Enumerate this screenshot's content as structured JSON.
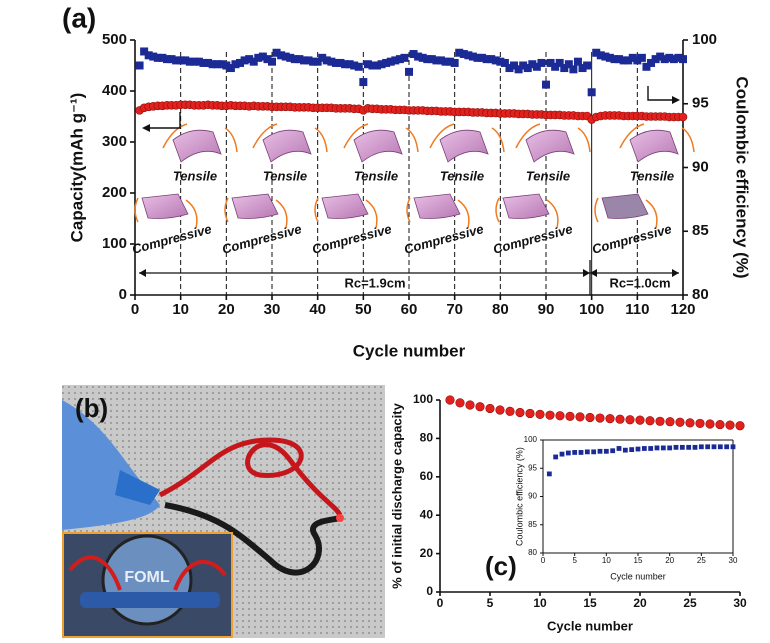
{
  "chart_data": [
    {
      "type": "scatter",
      "panel_label": "(a)",
      "xlabel": "Cycle number",
      "ylabel": "Capacity(mAh g⁻¹)",
      "y2label": "Coulombic efficiency (%)",
      "xlim": [
        0,
        120
      ],
      "xticks": [
        0,
        10,
        20,
        30,
        40,
        50,
        60,
        70,
        80,
        90,
        100,
        110,
        120
      ],
      "ylim": [
        0,
        500
      ],
      "yticks": [
        0,
        100,
        200,
        300,
        400,
        500
      ],
      "y2lim": [
        80,
        100
      ],
      "y2ticks": [
        80,
        85,
        90,
        95,
        100
      ],
      "annotations": {
        "tensile": "Tensile",
        "compressive": "Compressive",
        "rc1": "Rc=1.9cm",
        "rc2": "Rc=1.0cm"
      },
      "x": [
        1,
        2,
        3,
        4,
        5,
        6,
        7,
        8,
        9,
        10,
        11,
        12,
        13,
        14,
        15,
        16,
        17,
        18,
        19,
        20,
        21,
        22,
        23,
        24,
        25,
        26,
        27,
        28,
        29,
        30,
        31,
        32,
        33,
        34,
        35,
        36,
        37,
        38,
        39,
        40,
        41,
        42,
        43,
        44,
        45,
        46,
        47,
        48,
        49,
        50,
        51,
        52,
        53,
        54,
        55,
        56,
        57,
        58,
        59,
        60,
        61,
        62,
        63,
        64,
        65,
        66,
        67,
        68,
        69,
        70,
        71,
        72,
        73,
        74,
        75,
        76,
        77,
        78,
        79,
        80,
        81,
        82,
        83,
        84,
        85,
        86,
        87,
        88,
        89,
        90,
        91,
        92,
        93,
        94,
        95,
        96,
        97,
        98,
        99,
        100,
        101,
        102,
        103,
        104,
        105,
        106,
        107,
        108,
        109,
        110,
        111,
        112,
        113,
        114,
        115,
        116,
        117,
        118,
        119,
        120
      ],
      "series": [
        {
          "name": "Capacity",
          "color": "#e3201c",
          "marker": "circle",
          "values": [
            362,
            367,
            369,
            370,
            371,
            371,
            372,
            372,
            372,
            373,
            373,
            373,
            372,
            372,
            372,
            373,
            372,
            372,
            371,
            371,
            372,
            371,
            371,
            371,
            370,
            371,
            370,
            370,
            370,
            369,
            369,
            369,
            369,
            369,
            368,
            368,
            368,
            368,
            367,
            367,
            367,
            367,
            367,
            366,
            366,
            366,
            366,
            365,
            365,
            362,
            366,
            365,
            365,
            364,
            364,
            364,
            363,
            363,
            363,
            362,
            362,
            362,
            362,
            361,
            361,
            361,
            360,
            360,
            360,
            359,
            359,
            359,
            359,
            358,
            358,
            358,
            357,
            357,
            357,
            356,
            356,
            356,
            356,
            355,
            355,
            355,
            354,
            354,
            354,
            353,
            353,
            353,
            353,
            352,
            352,
            352,
            351,
            351,
            351,
            344,
            349,
            351,
            352,
            352,
            352,
            352,
            351,
            351,
            351,
            351,
            351,
            350,
            350,
            350,
            350,
            350,
            349,
            349,
            349,
            349
          ]
        },
        {
          "name": "Coulombic efficiency",
          "color": "#1c2a96",
          "marker": "square",
          "axis": "y2",
          "values": [
            98.0,
            99.1,
            98.8,
            98.7,
            98.6,
            98.6,
            98.5,
            98.5,
            98.4,
            98.4,
            98.4,
            98.3,
            98.3,
            98.3,
            98.2,
            98.2,
            98.1,
            98.1,
            98.1,
            98.0,
            97.8,
            98.1,
            98.2,
            98.4,
            98.5,
            98.3,
            98.6,
            98.7,
            98.5,
            98.3,
            99.0,
            98.8,
            98.7,
            98.6,
            98.5,
            98.5,
            98.4,
            98.4,
            98.3,
            98.3,
            98.6,
            98.4,
            98.3,
            98.2,
            98.2,
            98.1,
            98.1,
            98.0,
            97.9,
            96.7,
            98.1,
            98.0,
            98.0,
            98.1,
            98.2,
            98.3,
            98.4,
            98.5,
            98.6,
            97.5,
            98.9,
            98.7,
            98.6,
            98.5,
            98.5,
            98.4,
            98.4,
            98.3,
            98.3,
            98.2,
            99.0,
            98.9,
            98.8,
            98.7,
            98.6,
            98.6,
            98.5,
            98.5,
            98.4,
            98.3,
            98.2,
            97.8,
            98.0,
            97.7,
            98.0,
            97.8,
            98.1,
            97.9,
            98.2,
            96.5,
            98.2,
            97.9,
            98.2,
            97.8,
            98.1,
            97.7,
            98.3,
            97.8,
            98.0,
            95.9,
            99.0,
            98.8,
            98.7,
            98.6,
            98.5,
            98.5,
            98.4,
            98.4,
            98.6,
            98.4,
            98.6,
            97.9,
            98.2,
            98.5,
            98.7,
            98.5,
            98.6,
            98.5,
            98.6,
            98.5
          ]
        }
      ]
    },
    {
      "type": "scatter",
      "panel_label": "(c)",
      "xlabel": "Cycle number",
      "ylabel": "% of initial discharge capacity",
      "xlim": [
        0,
        30
      ],
      "xticks": [
        0,
        5,
        10,
        15,
        20,
        25,
        30
      ],
      "ylim": [
        0,
        100
      ],
      "yticks": [
        0,
        20,
        40,
        60,
        80,
        100
      ],
      "x": [
        1,
        2,
        3,
        4,
        5,
        6,
        7,
        8,
        9,
        10,
        11,
        12,
        13,
        14,
        15,
        16,
        17,
        18,
        19,
        20,
        21,
        22,
        23,
        24,
        25,
        26,
        27,
        28,
        29,
        30
      ],
      "series": [
        {
          "name": "Capacity retention",
          "color": "#e3201c",
          "marker": "circle",
          "values": [
            100,
            98.5,
            97.4,
            96.5,
            95.6,
            94.8,
            94.1,
            93.5,
            93.0,
            92.5,
            92.1,
            91.8,
            91.5,
            91.2,
            90.9,
            90.6,
            90.3,
            90.0,
            89.7,
            89.5,
            89.2,
            88.9,
            88.7,
            88.4,
            88.1,
            87.8,
            87.5,
            87.2,
            86.9,
            86.6
          ]
        }
      ]
    },
    {
      "type": "scatter",
      "xlabel": "Cycle number",
      "ylabel": "Coulombic efficiency (%)",
      "xlim": [
        0,
        30
      ],
      "xticks": [
        0,
        5,
        10,
        15,
        20,
        25,
        30
      ],
      "ylim": [
        80,
        100
      ],
      "yticks": [
        80,
        85,
        90,
        95,
        100
      ],
      "x": [
        1,
        2,
        3,
        4,
        5,
        6,
        7,
        8,
        9,
        10,
        11,
        12,
        13,
        14,
        15,
        16,
        17,
        18,
        19,
        20,
        21,
        22,
        23,
        24,
        25,
        26,
        27,
        28,
        29,
        30
      ],
      "series": [
        {
          "name": "Coulombic efficiency",
          "color": "#1c2a96",
          "marker": "square",
          "values": [
            94.0,
            97.0,
            97.5,
            97.7,
            97.8,
            97.8,
            97.9,
            97.9,
            98.0,
            98.0,
            98.1,
            98.5,
            98.2,
            98.3,
            98.4,
            98.5,
            98.5,
            98.6,
            98.6,
            98.6,
            98.7,
            98.7,
            98.7,
            98.7,
            98.8,
            98.8,
            98.8,
            98.8,
            98.8,
            98.8
          ]
        }
      ]
    }
  ],
  "photo": {
    "panel_label": "(b)",
    "inset_text": "FOML"
  }
}
